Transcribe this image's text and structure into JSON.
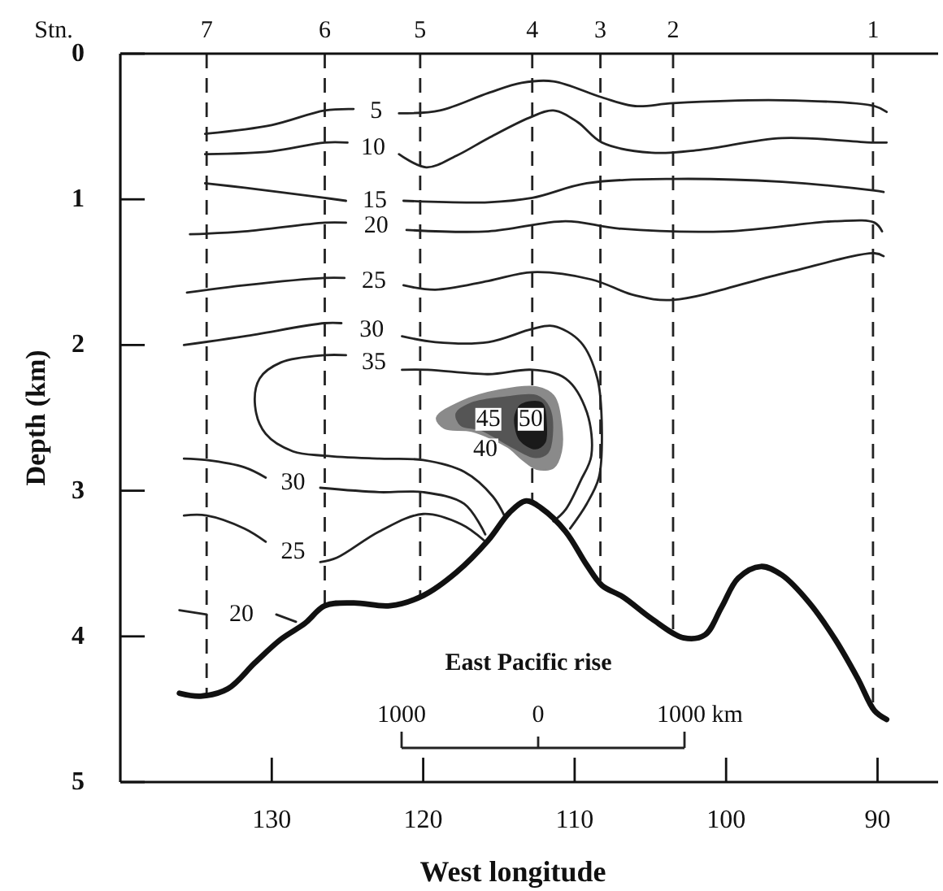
{
  "chart_data": {
    "type": "line",
    "xlabel": "West longitude",
    "ylabel": "Depth (km)",
    "xlim": [
      140,
      86
    ],
    "ylim": [
      5,
      0
    ],
    "xticks": [
      130,
      120,
      110,
      100,
      90
    ],
    "yticks": [
      0,
      1,
      2,
      3,
      4,
      5
    ],
    "series": [
      {
        "name": "5",
        "color": "#222222",
        "x": [
          134.4,
          130.0,
          126.5,
          124.6,
          null,
          121.6,
          118.9,
          115.7,
          113.5,
          111.4,
          108.2,
          106.0,
          103.5,
          96.3,
          90.2,
          89.4
        ],
        "values": [
          0.55,
          0.49,
          0.39,
          0.38,
          null,
          0.41,
          0.39,
          0.27,
          0.2,
          0.19,
          0.3,
          0.36,
          0.34,
          0.32,
          0.36,
          0.4
        ]
      },
      {
        "name": "10",
        "color": "#222222",
        "x": [
          134.4,
          130.0,
          126.5,
          125.0,
          null,
          121.6,
          119.8,
          117.8,
          115.7,
          113.0,
          111.4,
          109.8,
          108.2,
          104.9,
          101.7,
          96.3,
          90.3,
          89.4
        ],
        "values": [
          0.69,
          0.67,
          0.61,
          0.61,
          null,
          0.69,
          0.78,
          0.7,
          0.58,
          0.44,
          0.39,
          0.47,
          0.61,
          0.68,
          0.66,
          0.58,
          0.61,
          0.61
        ]
      },
      {
        "name": "15",
        "color": "#222222",
        "x": [
          134.4,
          131.8,
          126.5,
          125.1,
          null,
          121.3,
          115.7,
          112.8,
          109.2,
          103.5,
          96.3,
          90.2,
          89.6
        ],
        "values": [
          0.89,
          0.92,
          0.99,
          1.01,
          null,
          1.01,
          1.02,
          0.99,
          0.89,
          0.86,
          0.88,
          0.94,
          0.95
        ]
      },
      {
        "name": "20",
        "color": "#222222",
        "x": [
          135.4,
          131.8,
          126.5,
          125.1,
          null,
          121.1,
          115.7,
          110.6,
          107.1,
          99.9,
          92.8,
          90.2,
          89.7
        ],
        "values": [
          1.24,
          1.22,
          1.16,
          1.16,
          null,
          1.21,
          1.22,
          1.15,
          1.2,
          1.22,
          1.15,
          1.16,
          1.22
        ]
      },
      {
        "name": "25",
        "color": "#222222",
        "x": [
          135.6,
          131.8,
          126.5,
          125.2,
          null,
          121.3,
          119.2,
          115.7,
          112.8,
          108.9,
          106.0,
          103.5,
          96.3,
          90.2,
          89.6
        ],
        "values": [
          1.64,
          1.59,
          1.54,
          1.54,
          null,
          1.59,
          1.62,
          1.56,
          1.5,
          1.55,
          1.66,
          1.69,
          1.51,
          1.37,
          1.39
        ]
      },
      {
        "name": "30",
        "color": "#222222",
        "x": [
          135.8,
          131.8,
          126.5,
          125.4,
          null,
          121.4,
          119.2,
          115.7,
          112.8,
          111.4,
          109.6,
          108.5,
          108.2,
          108.4,
          109.2,
          110.3
        ],
        "values": [
          2.0,
          1.94,
          1.85,
          1.85,
          null,
          1.94,
          1.98,
          1.98,
          1.89,
          1.87,
          1.98,
          2.23,
          2.61,
          2.91,
          3.09,
          3.26
        ]
      },
      {
        "name": "35",
        "color": "#222222",
        "x": [
          114.6,
          115.4,
          117.3,
          120.0,
          122.9,
          126.5,
          128.6,
          130.4,
          131.1,
          130.8,
          129.4,
          126.5,
          125.1,
          null,
          121.4,
          119.7,
          115.7,
          112.8,
          110.6,
          109.2,
          108.9,
          109.6,
          110.6,
          111.4
        ],
        "values": [
          3.18,
          3.04,
          2.87,
          2.79,
          2.78,
          2.76,
          2.73,
          2.61,
          2.42,
          2.23,
          2.12,
          2.07,
          2.07,
          null,
          2.17,
          2.17,
          2.2,
          2.17,
          2.23,
          2.46,
          2.76,
          2.93,
          3.13,
          3.21
        ]
      },
      {
        "name": "30",
        "color": "#222222",
        "x": [
          135.8,
          134.3,
          131.8,
          130.4,
          null,
          126.8,
          122.9,
          120.0,
          117.3,
          115.9
        ],
        "values": [
          2.78,
          2.79,
          2.84,
          2.91,
          null,
          2.98,
          3.01,
          3.01,
          3.09,
          3.3
        ]
      },
      {
        "name": "25",
        "color": "#222222",
        "x": [
          135.8,
          134.3,
          131.8,
          130.4,
          null,
          126.8,
          125.7,
          122.9,
          120.0,
          117.5,
          116.0
        ],
        "values": [
          3.17,
          3.17,
          3.26,
          3.35,
          null,
          3.49,
          3.46,
          3.28,
          3.16,
          3.23,
          3.34
        ]
      },
      {
        "name": "20",
        "color": "#222222",
        "x": [
          136.1,
          134.3,
          null,
          129.7,
          128.4
        ],
        "values": [
          3.82,
          3.85,
          null,
          3.85,
          3.9
        ]
      },
      {
        "type": "area",
        "color": "#8a8a8a",
        "x": [
          119.1,
          117.5,
          114.9,
          112.5,
          111.4,
          110.9,
          110.9,
          111.4,
          112.5,
          113.5,
          114.4,
          116.8,
          118.6
        ],
        "values": [
          2.5,
          2.39,
          2.31,
          2.29,
          2.35,
          2.54,
          2.73,
          2.84,
          2.85,
          2.78,
          2.7,
          2.59,
          2.57
        ]
      },
      {
        "type": "area",
        "color": "#555555",
        "x": [
          117.8,
          116.8,
          114.6,
          112.5,
          111.7,
          111.5,
          111.8,
          112.6,
          114.1,
          116.2,
          117.5
        ],
        "values": [
          2.47,
          2.4,
          2.36,
          2.35,
          2.43,
          2.62,
          2.74,
          2.77,
          2.7,
          2.58,
          2.55
        ]
      },
      {
        "type": "area",
        "color": "#1a1a1a",
        "x": [
          113.5,
          112.2,
          111.9,
          112.0,
          112.6,
          113.6,
          113.9,
          113.9
        ],
        "values": [
          2.41,
          2.4,
          2.54,
          2.67,
          2.71,
          2.65,
          2.56,
          2.48
        ]
      },
      {
        "color": "#111111",
        "x": [
          136.1,
          134.7,
          132.9,
          131.1,
          129.4,
          127.8,
          126.5,
          124.6,
          122.2,
          120.0,
          117.8,
          115.7,
          114.3,
          113.2,
          112.2,
          110.6,
          109.2,
          108.2,
          106.8,
          104.9,
          102.8,
          101.4,
          100.3,
          99.2,
          97.7,
          96.3,
          94.5,
          92.8,
          91.3,
          90.2,
          89.4
        ],
        "values": [
          4.39,
          4.41,
          4.36,
          4.18,
          4.02,
          3.91,
          3.79,
          3.77,
          3.79,
          3.72,
          3.56,
          3.34,
          3.15,
          3.07,
          3.12,
          3.28,
          3.51,
          3.65,
          3.73,
          3.88,
          4.01,
          3.99,
          3.8,
          3.6,
          3.52,
          3.58,
          3.77,
          4.02,
          4.29,
          4.51,
          4.57
        ]
      }
    ],
    "ref_lines": [
      {
        "axis": "x",
        "value": 134.3,
        "line_style": "dashed"
      },
      {
        "axis": "x",
        "value": 126.5,
        "line_style": "dashed"
      },
      {
        "axis": "x",
        "value": 120.2,
        "line_style": "dashed"
      },
      {
        "axis": "x",
        "value": 112.8,
        "line_style": "dashed"
      },
      {
        "axis": "x",
        "value": 108.3,
        "line_style": "dashed"
      },
      {
        "axis": "x",
        "value": 103.5,
        "line_style": "dashed"
      },
      {
        "axis": "x",
        "value": 90.3,
        "line_style": "dashed"
      }
    ],
    "annotations": [
      "Stn.",
      "East Pacific rise",
      "1000",
      "0",
      "1000 km",
      {
        "text": "7",
        "x": 134.3,
        "y": 0
      },
      {
        "text": "6",
        "x": 126.5,
        "y": 0
      },
      {
        "text": "5",
        "x": 120.2,
        "y": 0
      },
      {
        "text": "4",
        "x": 112.8,
        "y": 0
      },
      {
        "text": "3",
        "x": 108.3,
        "y": 0
      },
      {
        "text": "2",
        "x": 103.5,
        "y": 0
      },
      {
        "text": "1",
        "x": 90.3,
        "y": 0
      },
      {
        "text": "45",
        "x": 115.7,
        "y": 2.51
      },
      {
        "text": "50",
        "x": 112.9,
        "y": 2.51
      },
      {
        "text": "40",
        "x": 115.9,
        "y": 2.72
      }
    ]
  }
}
